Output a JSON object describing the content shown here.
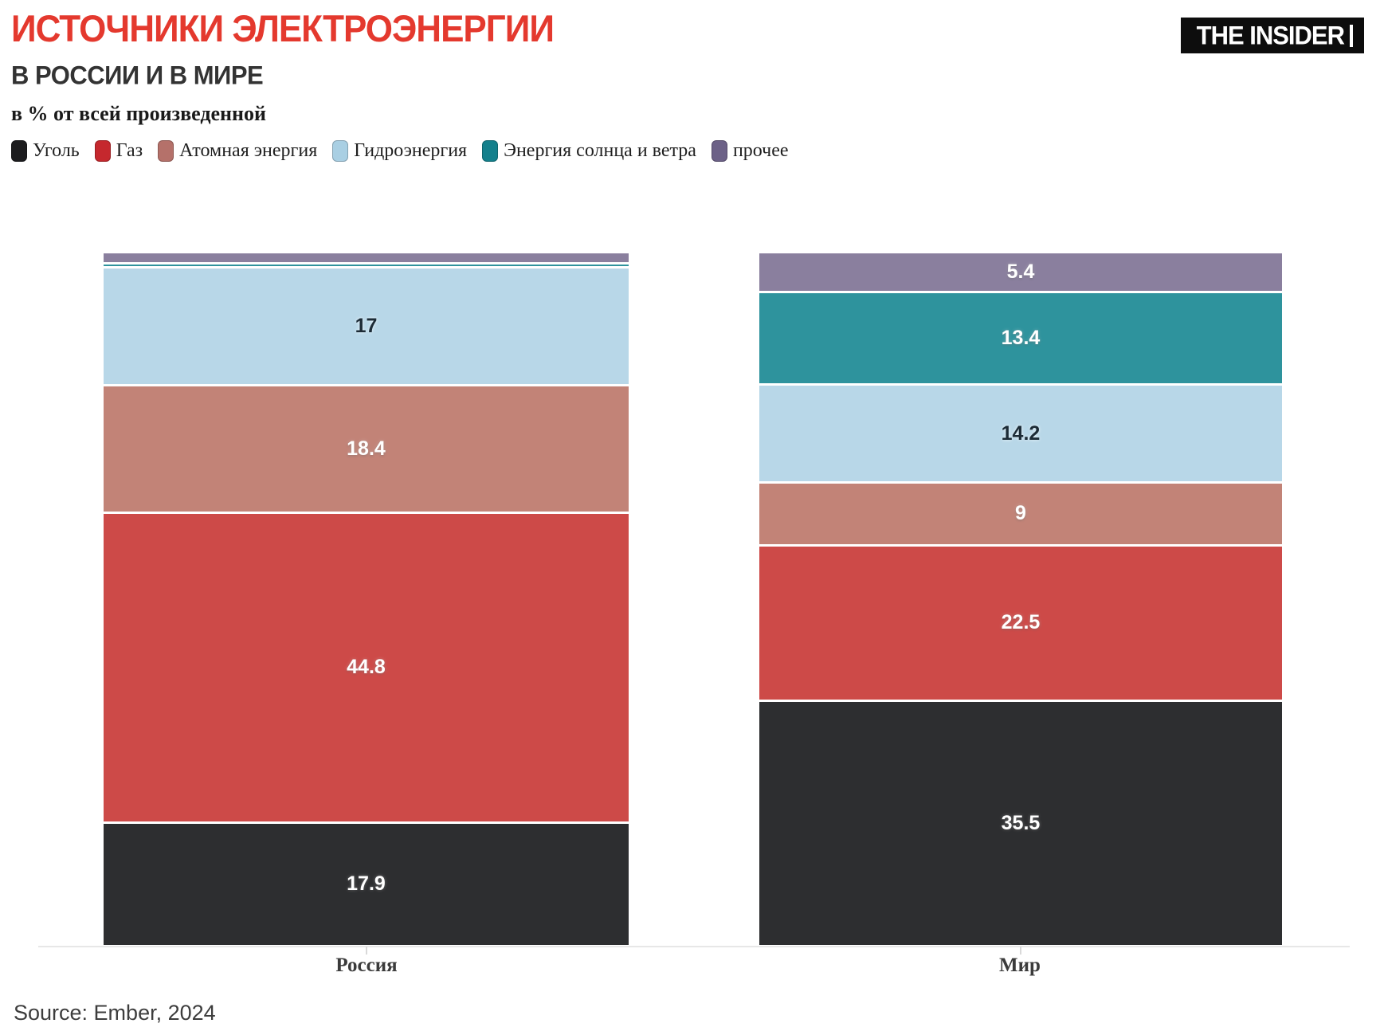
{
  "header": {
    "title": "ИСТОЧНИКИ ЭЛЕКТРОЭНЕРГИИ",
    "subtitle": "В РОССИИ И В МИРЕ",
    "note": "в % от всей произведенной",
    "title_color": "#e4392e",
    "logo_text": "THE INSIDER"
  },
  "legend": [
    {
      "key": "coal",
      "label": "Уголь",
      "color": "#1c1c1e"
    },
    {
      "key": "gas",
      "label": "Газ",
      "color": "#c5282e"
    },
    {
      "key": "nuclear",
      "label": "Атомная энергия",
      "color": "#b5716a"
    },
    {
      "key": "hydro",
      "label": "Гидроэнергия",
      "color": "#a9cfe3"
    },
    {
      "key": "solar-wind",
      "label": "Энергия солнца и ветра",
      "color": "#14808c"
    },
    {
      "key": "other",
      "label": "прочее",
      "color": "#6c6187"
    }
  ],
  "chart_data": {
    "type": "bar",
    "stacked": true,
    "orientation": "vertical",
    "unit": "%",
    "ylim": [
      0,
      100
    ],
    "grid": false,
    "legend_position": "top",
    "categories": [
      "Россия",
      "Мир"
    ],
    "series": [
      {
        "key": "coal",
        "name": "Уголь",
        "color": "#2d2e30",
        "label_color": "#ffffff",
        "values": [
          17.9,
          35.5
        ],
        "labels": [
          "17.9",
          "35.5"
        ]
      },
      {
        "key": "gas",
        "name": "Газ",
        "color": "#cd4a48",
        "label_color": "#ffffff",
        "values": [
          44.8,
          22.5
        ],
        "labels": [
          "44.8",
          "22.5"
        ]
      },
      {
        "key": "nuclear",
        "name": "Атомная энергия",
        "color": "#c28377",
        "label_color": "#ffffff",
        "values": [
          18.4,
          9
        ],
        "labels": [
          "18.4",
          "9"
        ]
      },
      {
        "key": "hydro",
        "name": "Гидроэнергия",
        "color": "#b8d7e8",
        "label_color": "#1c2b36",
        "values": [
          17,
          14.2
        ],
        "labels": [
          "17",
          "14.2"
        ]
      },
      {
        "key": "solar-wind",
        "name": "Энергия солнца и ветра",
        "color": "#2e939d",
        "label_color": "#ffffff",
        "values": [
          0.6,
          13.4
        ],
        "labels": [
          "",
          "13.4"
        ]
      },
      {
        "key": "other",
        "name": "прочее",
        "color": "#8a7f9e",
        "label_color": "#ffffff",
        "values": [
          1.3,
          5.4
        ],
        "labels": [
          "",
          "5.4"
        ]
      }
    ]
  },
  "footer": {
    "source": "Source: Ember, 2024"
  }
}
